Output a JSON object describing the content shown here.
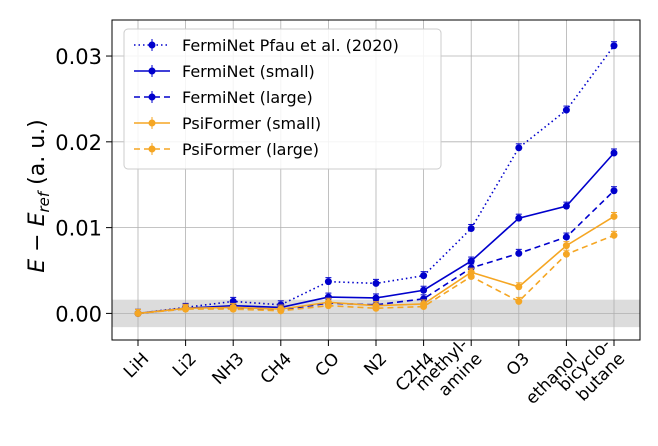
{
  "chart_data": {
    "type": "line",
    "title": "",
    "xlabel": "",
    "ylabel": {
      "main": "E − E",
      "sub": "ref",
      "unit": " (a. u.)"
    },
    "categories": [
      "LiH",
      "Li2",
      "NH3",
      "CH4",
      "CO",
      "N2",
      "C2H4",
      "methyl-\namine",
      "O3",
      "ethanol",
      "bicyclo-\nbutane"
    ],
    "ylim": [
      -0.0031,
      0.0342
    ],
    "yticks": [
      0.0,
      0.01,
      0.02,
      0.03
    ],
    "ytick_labels": [
      "0.00",
      "0.01",
      "0.02",
      "0.03"
    ],
    "grid": true,
    "shaded_band": [
      -0.0016,
      0.0016
    ],
    "legend_position": "top-left",
    "series": [
      {
        "name": "FermiNet Pfau et al. (2020)",
        "color": "#0000cc",
        "dash": "dotted",
        "values": [
          0.0,
          0.0007,
          0.0014,
          0.001,
          0.0037,
          0.0035,
          0.0044,
          0.0099,
          0.0193,
          0.0237,
          0.0312
        ]
      },
      {
        "name": "FermiNet (small)",
        "color": "#0000cc",
        "dash": "solid",
        "values": [
          0.0,
          0.0006,
          0.0009,
          0.0007,
          0.0019,
          0.0018,
          0.0027,
          0.0061,
          0.0111,
          0.0125,
          0.0187
        ]
      },
      {
        "name": "FermiNet (large)",
        "color": "#0000cc",
        "dash": "dashed",
        "values": [
          0.0,
          0.0006,
          0.0006,
          0.0004,
          0.0012,
          0.001,
          0.0017,
          0.0053,
          0.007,
          0.0089,
          0.0143
        ]
      },
      {
        "name": "PsiFormer (small)",
        "color": "#f5a623",
        "dash": "solid",
        "values": [
          0.0,
          0.0006,
          0.0007,
          0.0005,
          0.0013,
          0.0009,
          0.0011,
          0.0048,
          0.0031,
          0.0079,
          0.0113
        ]
      },
      {
        "name": "PsiFormer (large)",
        "color": "#f5a623",
        "dash": "dashed",
        "values": [
          0.0,
          0.0005,
          0.0005,
          0.0003,
          0.0009,
          0.0006,
          0.0008,
          0.0043,
          0.0014,
          0.0069,
          0.0091
        ]
      }
    ]
  }
}
